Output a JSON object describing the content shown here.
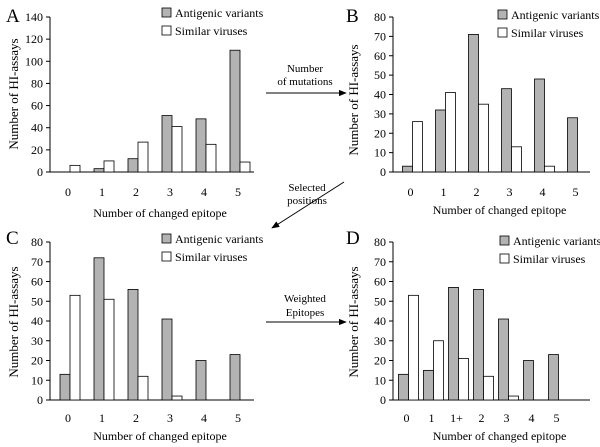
{
  "figure": {
    "arrows": [
      {
        "label_lines": [
          "Number",
          "of mutations"
        ],
        "direction": "right"
      },
      {
        "label_lines": [
          "Selected",
          "positions"
        ],
        "direction": "down-left"
      },
      {
        "label_lines": [
          "Weighted",
          "Epitopes"
        ],
        "direction": "right"
      }
    ]
  },
  "colors": {
    "antigenic": "#b3b3b3",
    "similar": "#ffffff",
    "stroke": "#000000"
  },
  "chart_data": [
    {
      "panel": "A",
      "type": "bar",
      "categories": [
        "0",
        "1",
        "2",
        "3",
        "4",
        "5"
      ],
      "series": [
        {
          "name": "Antigenic variants",
          "values": [
            0,
            3,
            12,
            51,
            48,
            110
          ]
        },
        {
          "name": "Similar viruses",
          "values": [
            6,
            10,
            27,
            41,
            25,
            9
          ]
        }
      ],
      "xlabel": "Number of changed epitope",
      "ylabel": "Number of HI-assays",
      "ylim": [
        0,
        140
      ],
      "yticks": [
        0,
        20,
        40,
        60,
        80,
        100,
        120,
        140
      ],
      "legend": "top-right"
    },
    {
      "panel": "B",
      "type": "bar",
      "categories": [
        "0",
        "1",
        "2",
        "3",
        "4",
        "5"
      ],
      "series": [
        {
          "name": "Antigenic variants",
          "values": [
            3,
            32,
            71,
            43,
            48,
            28
          ]
        },
        {
          "name": "Similar viruses",
          "values": [
            26,
            41,
            35,
            13,
            3,
            0
          ]
        }
      ],
      "xlabel": "Number of changed epitope",
      "ylabel": "Number of HI-assays",
      "ylim": [
        0,
        80
      ],
      "yticks": [
        0,
        10,
        20,
        30,
        40,
        50,
        60,
        70,
        80
      ],
      "legend": "top-right"
    },
    {
      "panel": "C",
      "type": "bar",
      "categories": [
        "0",
        "1",
        "2",
        "3",
        "4",
        "5"
      ],
      "series": [
        {
          "name": "Antigenic variants",
          "values": [
            13,
            72,
            56,
            41,
            20,
            23
          ]
        },
        {
          "name": "Similar viruses",
          "values": [
            53,
            51,
            12,
            2,
            0,
            0
          ]
        }
      ],
      "xlabel": "Number of changed epitope",
      "ylabel": "Number of HI-assays",
      "ylim": [
        0,
        80
      ],
      "yticks": [
        0,
        10,
        20,
        30,
        40,
        50,
        60,
        70,
        80
      ],
      "legend": "top-right"
    },
    {
      "panel": "D",
      "type": "bar",
      "categories": [
        "0",
        "1",
        "1+",
        "2",
        "3",
        "4",
        "5"
      ],
      "series": [
        {
          "name": "Antigenic variants",
          "values": [
            13,
            15,
            57,
            56,
            41,
            20,
            23
          ]
        },
        {
          "name": "Similar viruses",
          "values": [
            53,
            30,
            21,
            12,
            2,
            0,
            0
          ]
        }
      ],
      "xlabel": "Number of changed epitope",
      "ylabel": "Number of HI-assays",
      "ylim": [
        0,
        80
      ],
      "yticks": [
        0,
        10,
        20,
        30,
        40,
        50,
        60,
        70,
        80
      ],
      "legend": "top-right"
    }
  ]
}
